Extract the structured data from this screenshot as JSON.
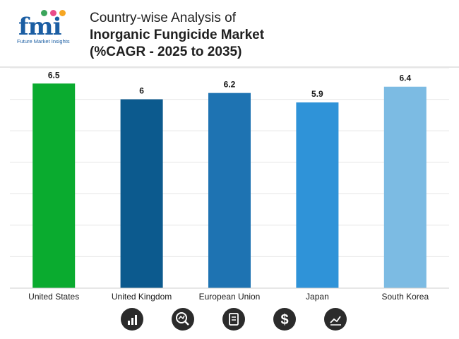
{
  "header": {
    "logo_text": "fmi",
    "logo_subtitle": "Future Market Insights",
    "title_line1": "Country-wise Analysis of",
    "title_line2": "Inorganic Fungicide Market",
    "title_line3": "(%CAGR - 2025 to 2035)"
  },
  "chart_data": {
    "type": "bar",
    "categories": [
      "United States",
      "United Kingdom",
      "European Union",
      "Japan",
      "South Korea"
    ],
    "values": [
      6.5,
      6,
      6.2,
      5.9,
      6.4
    ],
    "value_labels": [
      "6.5",
      "6",
      "6.2",
      "5.9",
      "6.4"
    ],
    "colors": [
      "#0aab2f",
      "#0c5a8e",
      "#1e73b2",
      "#2f93d8",
      "#7cbbe3"
    ],
    "title": "",
    "xlabel": "",
    "ylabel": "",
    "ylim": [
      0,
      7
    ],
    "grid": true,
    "legend": "none"
  },
  "footer_icons": [
    "bar-chart-icon",
    "magnifier-chart-icon",
    "document-icon",
    "dollar-icon",
    "line-chart-icon"
  ]
}
